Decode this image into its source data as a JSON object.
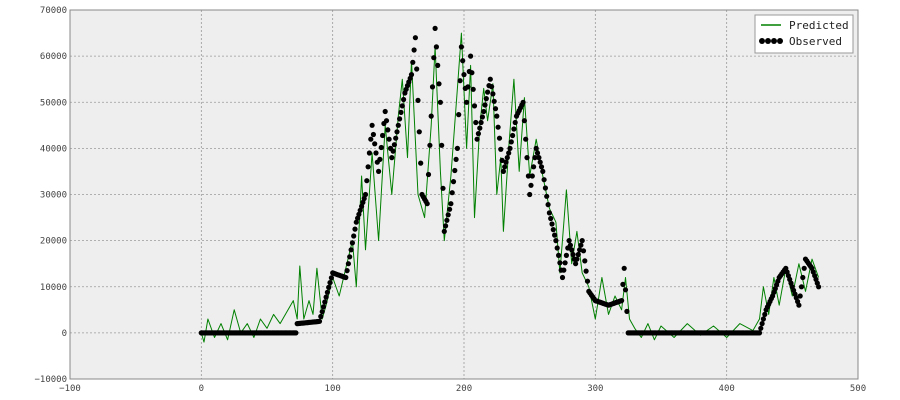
{
  "chart_data": {
    "type": "line",
    "title": "",
    "xlabel": "",
    "ylabel": "",
    "xlim": [
      -100,
      500
    ],
    "ylim": [
      -10000,
      70000
    ],
    "grid": true,
    "legend_position": "top-right",
    "xticks": [
      -100,
      0,
      100,
      200,
      300,
      400,
      500
    ],
    "yticks": [
      -10000,
      0,
      10000,
      20000,
      30000,
      40000,
      50000,
      60000,
      70000
    ],
    "xtick_labels": [
      "−100",
      "0",
      "100",
      "200",
      "300",
      "400",
      "500"
    ],
    "ytick_labels": [
      "−10000",
      "0",
      "10000",
      "20000",
      "30000",
      "40000",
      "50000",
      "60000",
      "70000"
    ],
    "colors": {
      "predicted": "#008000",
      "observed": "#000000",
      "plot_bg": "#eeeeee",
      "grid": "#9a9a9a"
    },
    "series": [
      {
        "name": "Predicted",
        "style": "line",
        "color": "#008000"
      },
      {
        "name": "Observed",
        "style": "markers",
        "color": "#000000"
      }
    ],
    "observed_anchors": [
      [
        0,
        0
      ],
      [
        72,
        0
      ],
      [
        73,
        2000
      ],
      [
        90,
        2500
      ],
      [
        100,
        13000
      ],
      [
        110,
        12000
      ],
      [
        118,
        24000
      ],
      [
        125,
        30000
      ],
      [
        130,
        45000
      ],
      [
        135,
        35000
      ],
      [
        140,
        48000
      ],
      [
        145,
        38000
      ],
      [
        150,
        45000
      ],
      [
        155,
        52000
      ],
      [
        160,
        56000
      ],
      [
        163,
        64000
      ],
      [
        168,
        30000
      ],
      [
        172,
        28000
      ],
      [
        178,
        66000
      ],
      [
        182,
        50000
      ],
      [
        185,
        22000
      ],
      [
        190,
        28000
      ],
      [
        195,
        40000
      ],
      [
        198,
        62000
      ],
      [
        202,
        50000
      ],
      [
        205,
        60000
      ],
      [
        210,
        42000
      ],
      [
        215,
        48000
      ],
      [
        220,
        55000
      ],
      [
        225,
        47000
      ],
      [
        230,
        35000
      ],
      [
        235,
        40000
      ],
      [
        240,
        47000
      ],
      [
        245,
        50000
      ],
      [
        250,
        30000
      ],
      [
        255,
        40000
      ],
      [
        260,
        35000
      ],
      [
        265,
        26000
      ],
      [
        270,
        20000
      ],
      [
        275,
        12000
      ],
      [
        280,
        20000
      ],
      [
        285,
        15000
      ],
      [
        290,
        20000
      ],
      [
        295,
        9000
      ],
      [
        300,
        7000
      ],
      [
        310,
        6000
      ],
      [
        320,
        7000
      ],
      [
        322,
        14000
      ],
      [
        325,
        0
      ],
      [
        425,
        0
      ],
      [
        430,
        5000
      ],
      [
        435,
        8000
      ],
      [
        440,
        12000
      ],
      [
        445,
        14000
      ],
      [
        450,
        10000
      ],
      [
        455,
        6000
      ],
      [
        460,
        16000
      ],
      [
        465,
        14000
      ],
      [
        470,
        10000
      ]
    ],
    "predicted_anchors": [
      [
        0,
        0
      ],
      [
        2,
        -2000
      ],
      [
        5,
        3000
      ],
      [
        10,
        -1000
      ],
      [
        15,
        2000
      ],
      [
        20,
        -1500
      ],
      [
        25,
        5000
      ],
      [
        30,
        0
      ],
      [
        35,
        2000
      ],
      [
        40,
        -1000
      ],
      [
        45,
        3000
      ],
      [
        50,
        1000
      ],
      [
        55,
        4000
      ],
      [
        60,
        2000
      ],
      [
        65,
        4500
      ],
      [
        70,
        7000
      ],
      [
        73,
        3000
      ],
      [
        75,
        14500
      ],
      [
        78,
        3000
      ],
      [
        82,
        7000
      ],
      [
        85,
        4000
      ],
      [
        88,
        14000
      ],
      [
        92,
        3000
      ],
      [
        95,
        6000
      ],
      [
        100,
        12000
      ],
      [
        105,
        8000
      ],
      [
        110,
        14000
      ],
      [
        115,
        20000
      ],
      [
        118,
        10000
      ],
      [
        122,
        34000
      ],
      [
        125,
        18000
      ],
      [
        130,
        39000
      ],
      [
        135,
        20000
      ],
      [
        140,
        45000
      ],
      [
        145,
        30000
      ],
      [
        150,
        47000
      ],
      [
        153,
        55000
      ],
      [
        157,
        38000
      ],
      [
        160,
        59000
      ],
      [
        165,
        30000
      ],
      [
        170,
        25000
      ],
      [
        175,
        45000
      ],
      [
        178,
        62000
      ],
      [
        182,
        35000
      ],
      [
        185,
        20000
      ],
      [
        190,
        34000
      ],
      [
        195,
        53000
      ],
      [
        198,
        65000
      ],
      [
        202,
        40000
      ],
      [
        205,
        58000
      ],
      [
        208,
        25000
      ],
      [
        212,
        45000
      ],
      [
        215,
        53000
      ],
      [
        218,
        46000
      ],
      [
        222,
        54000
      ],
      [
        225,
        30000
      ],
      [
        228,
        38000
      ],
      [
        230,
        22000
      ],
      [
        234,
        40000
      ],
      [
        238,
        55000
      ],
      [
        242,
        35000
      ],
      [
        246,
        51000
      ],
      [
        250,
        34000
      ],
      [
        255,
        42000
      ],
      [
        260,
        34000
      ],
      [
        265,
        27000
      ],
      [
        270,
        24000
      ],
      [
        273,
        13000
      ],
      [
        278,
        31000
      ],
      [
        282,
        15000
      ],
      [
        286,
        22000
      ],
      [
        290,
        13000
      ],
      [
        295,
        10000
      ],
      [
        300,
        3000
      ],
      [
        305,
        12000
      ],
      [
        310,
        4000
      ],
      [
        315,
        8000
      ],
      [
        320,
        5000
      ],
      [
        323,
        12000
      ],
      [
        326,
        3000
      ],
      [
        330,
        1000
      ],
      [
        335,
        -1000
      ],
      [
        340,
        2000
      ],
      [
        345,
        -1500
      ],
      [
        350,
        1500
      ],
      [
        360,
        -1000
      ],
      [
        370,
        2000
      ],
      [
        380,
        -500
      ],
      [
        390,
        1500
      ],
      [
        400,
        -1000
      ],
      [
        410,
        2000
      ],
      [
        420,
        500
      ],
      [
        425,
        3000
      ],
      [
        428,
        10000
      ],
      [
        432,
        4000
      ],
      [
        436,
        12000
      ],
      [
        440,
        6000
      ],
      [
        445,
        14000
      ],
      [
        450,
        8000
      ],
      [
        455,
        15000
      ],
      [
        460,
        9000
      ],
      [
        465,
        16000
      ],
      [
        470,
        12000
      ]
    ]
  }
}
